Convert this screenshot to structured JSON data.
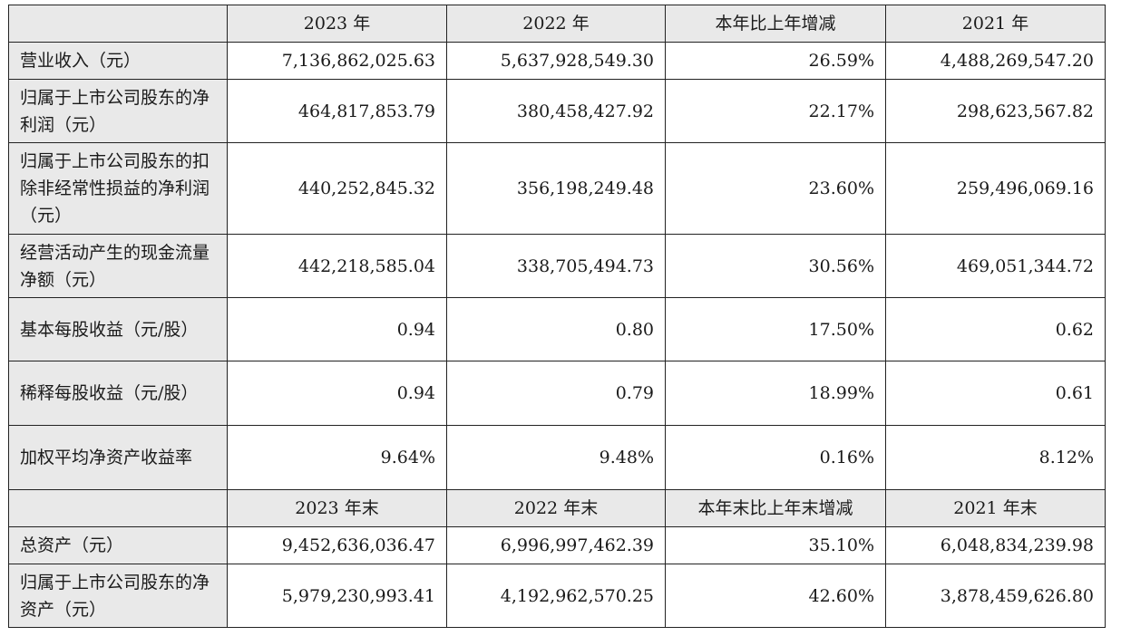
{
  "header1": [
    "2023 年",
    "2022 年",
    "本年比上年增减",
    "2021 年"
  ],
  "rows1": [
    {
      "label": "营业收入（元）",
      "values": [
        "7,136,862,025.63",
        "5,637,928,549.30",
        "26.59%",
        "4,488,269,547.20"
      ]
    },
    {
      "label": "归属于上市公司股东的净利润（元）",
      "values": [
        "464,817,853.79",
        "380,458,427.92",
        "22.17%",
        "298,623,567.82"
      ]
    },
    {
      "label": "归属于上市公司股东的扣除非经常性损益的净利润（元）",
      "values": [
        "440,252,845.32",
        "356,198,249.48",
        "23.60%",
        "259,496,069.16"
      ]
    },
    {
      "label": "经营活动产生的现金流量净额（元）",
      "values": [
        "442,218,585.04",
        "338,705,494.73",
        "30.56%",
        "469,051,344.72"
      ]
    },
    {
      "label": "基本每股收益（元/股）",
      "values": [
        "0.94",
        "0.80",
        "17.50%",
        "0.62"
      ]
    },
    {
      "label": "稀释每股收益（元/股）",
      "values": [
        "0.94",
        "0.79",
        "18.99%",
        "0.61"
      ]
    },
    {
      "label": "加权平均净资产收益率",
      "values": [
        "9.64%",
        "9.48%",
        "0.16%",
        "8.12%"
      ]
    }
  ],
  "header2": [
    "2023 年末",
    "2022 年末",
    "本年末比上年末增减",
    "2021 年末"
  ],
  "rows2": [
    {
      "label": "总资产（元）",
      "values": [
        "9,452,636,036.47",
        "6,996,997,462.39",
        "35.10%",
        "6,048,834,239.98"
      ]
    },
    {
      "label": "归属于上市公司股东的净资产（元）",
      "values": [
        "5,979,230,993.41",
        "4,192,962,570.25",
        "42.60%",
        "3,878,459,626.80"
      ]
    }
  ]
}
